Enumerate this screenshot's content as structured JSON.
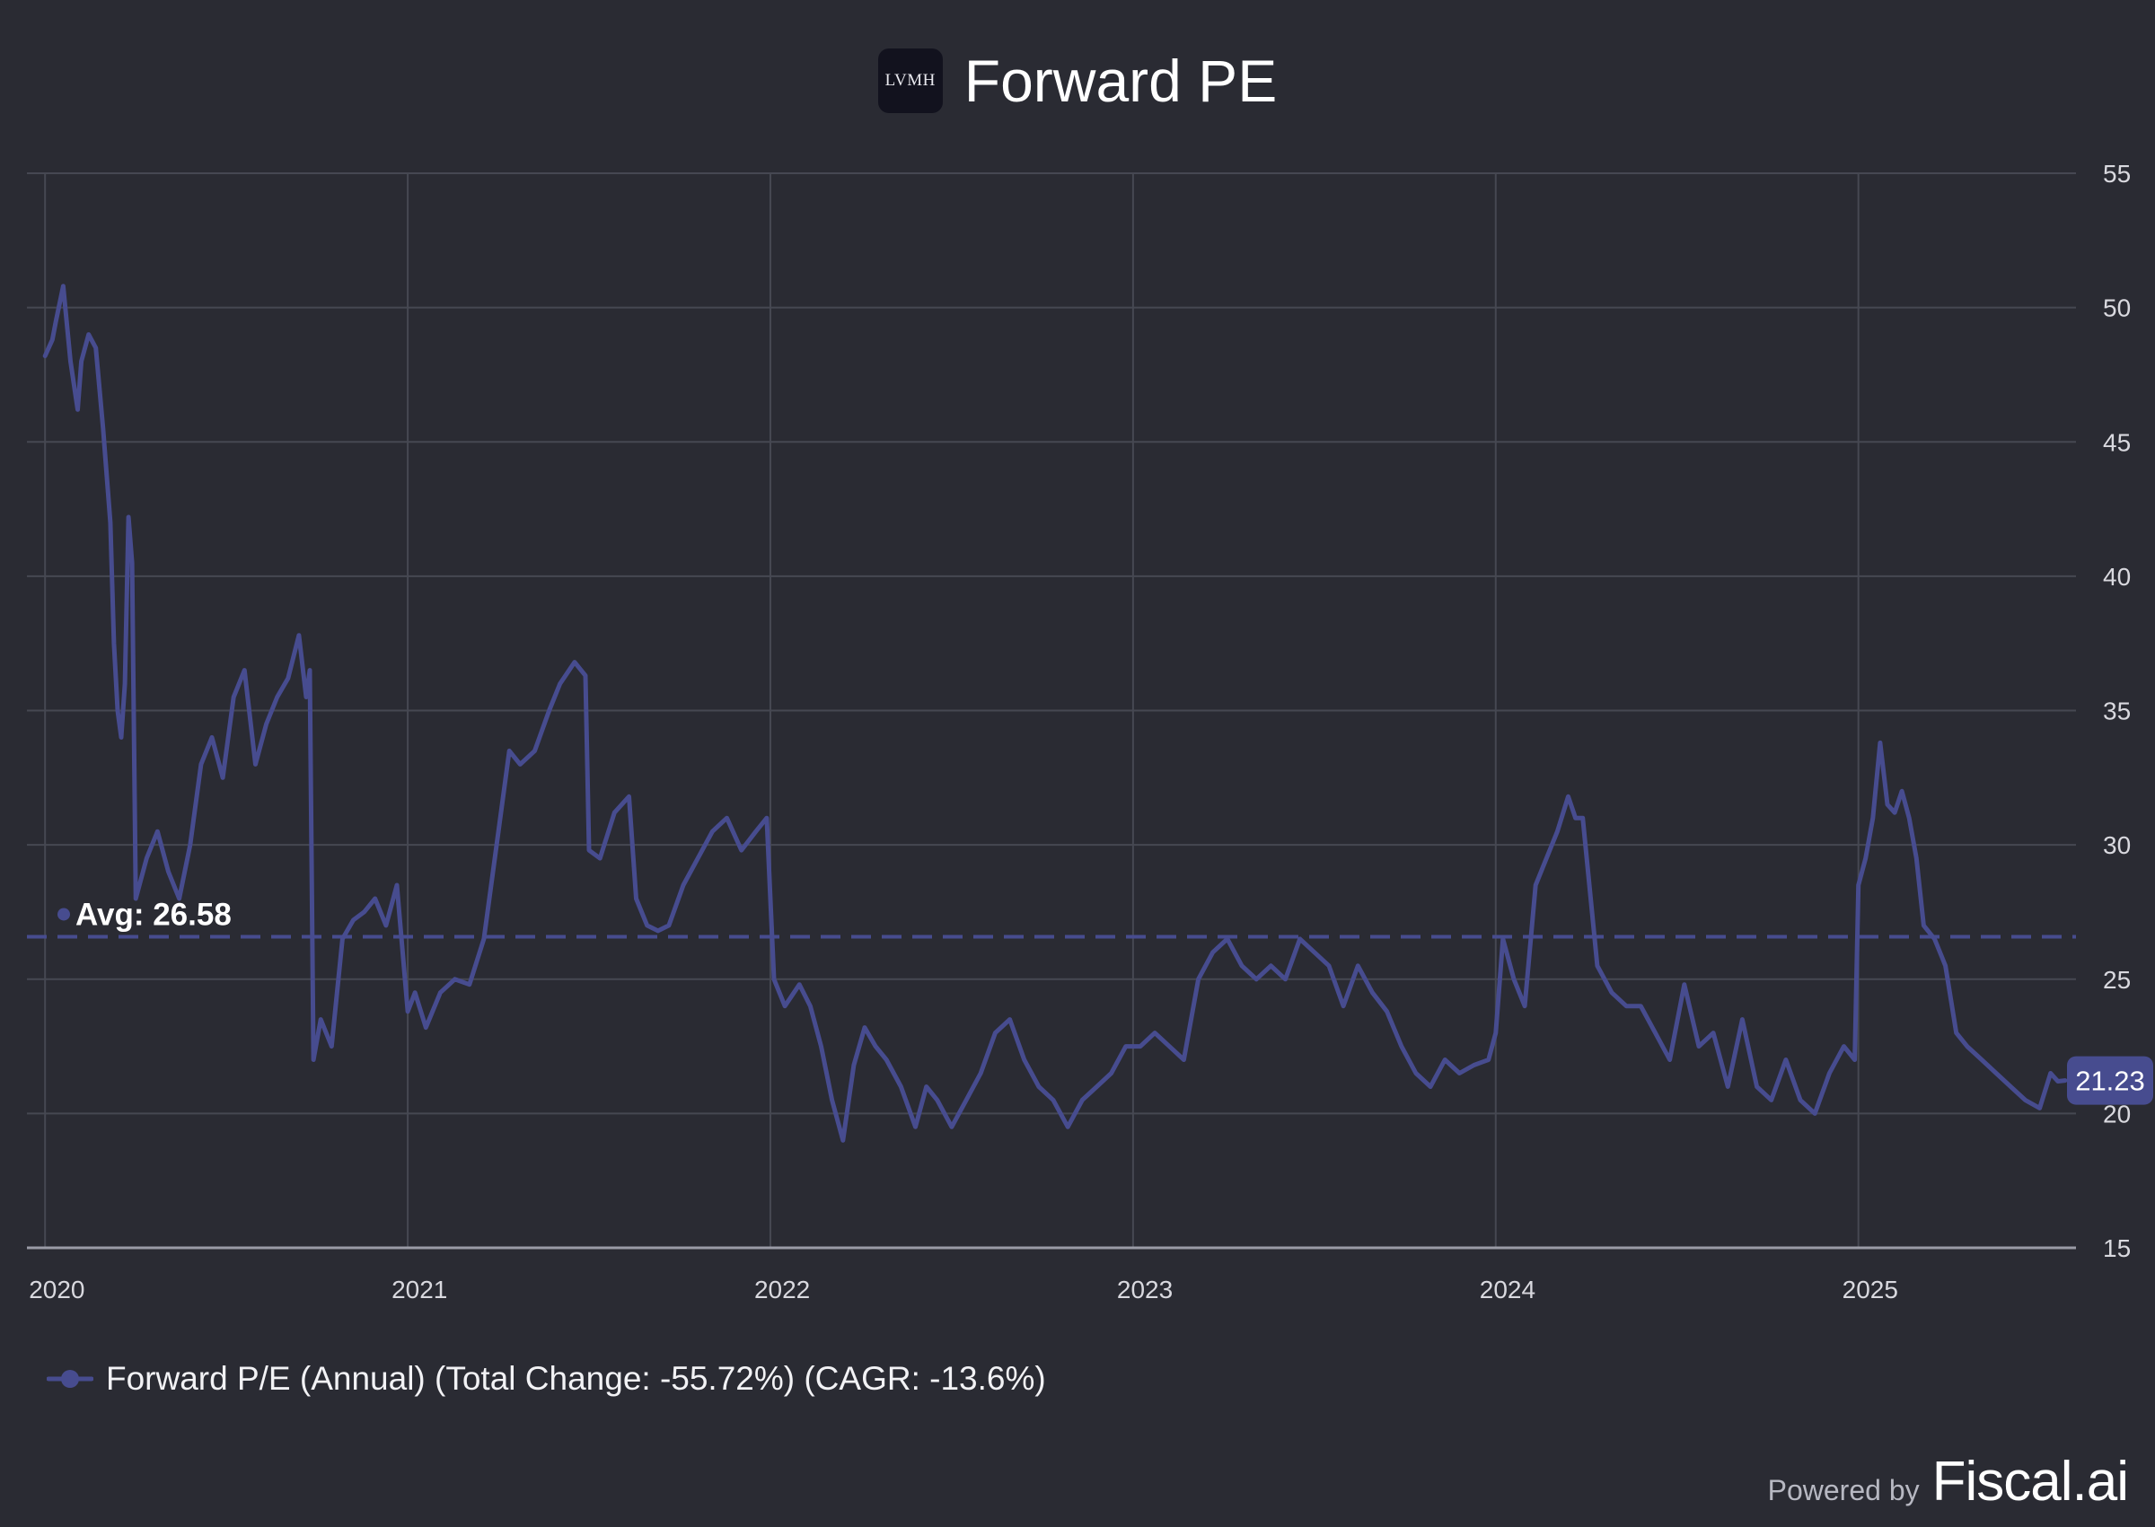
{
  "header": {
    "logo_text": "LVMH",
    "title": "Forward PE"
  },
  "legend": {
    "label": "Forward P/E (Annual) (Total Change: -55.72%) (CAGR: -13.6%)"
  },
  "footer": {
    "powered_by": "Powered by",
    "brand": "Fiscal.ai"
  },
  "colors": {
    "background": "#2a2b33",
    "series": "#474c8f",
    "grid": "#464852",
    "text": "#d9d9df"
  },
  "chart_data": {
    "type": "line",
    "title": "Forward PE",
    "xlabel": "",
    "ylabel": "",
    "x_ticks": [
      "2020",
      "2021",
      "2022",
      "2023",
      "2024",
      "2025"
    ],
    "y_ticks": [
      "15",
      "20",
      "25",
      "30",
      "35",
      "40",
      "45",
      "50",
      "55"
    ],
    "xlim": [
      2019.95,
      2025.6
    ],
    "ylim": [
      15,
      55
    ],
    "average": {
      "label": "Avg: 26.58",
      "value": 26.58
    },
    "last_value_label": "21.23",
    "series": [
      {
        "name": "Forward P/E (Annual) (Total Change: -55.72%) (CAGR: -13.6%)",
        "x": [
          2020.0,
          2020.02,
          2020.03,
          2020.05,
          2020.07,
          2020.09,
          2020.1,
          2020.12,
          2020.14,
          2020.16,
          2020.18,
          2020.19,
          2020.2,
          2020.21,
          2020.22,
          2020.23,
          2020.24,
          2020.25,
          2020.28,
          2020.31,
          2020.34,
          2020.37,
          2020.4,
          2020.43,
          2020.46,
          2020.49,
          2020.52,
          2020.55,
          2020.58,
          2020.61,
          2020.64,
          2020.67,
          2020.7,
          2020.72,
          2020.73,
          2020.74,
          2020.76,
          2020.79,
          2020.82,
          2020.85,
          2020.88,
          2020.91,
          2020.94,
          2020.97,
          2021.0,
          2021.02,
          2021.05,
          2021.09,
          2021.13,
          2021.17,
          2021.21,
          2021.25,
          2021.28,
          2021.31,
          2021.35,
          2021.39,
          2021.42,
          2021.46,
          2021.49,
          2021.5,
          2021.53,
          2021.57,
          2021.61,
          2021.63,
          2021.66,
          2021.69,
          2021.72,
          2021.76,
          2021.8,
          2021.84,
          2021.88,
          2021.92,
          2021.96,
          2021.99,
          2022.01,
          2022.04,
          2022.08,
          2022.11,
          2022.14,
          2022.17,
          2022.2,
          2022.23,
          2022.26,
          2022.29,
          2022.32,
          2022.36,
          2022.4,
          2022.43,
          2022.46,
          2022.5,
          2022.54,
          2022.58,
          2022.62,
          2022.66,
          2022.7,
          2022.74,
          2022.78,
          2022.82,
          2022.86,
          2022.9,
          2022.94,
          2022.98,
          2023.02,
          2023.06,
          2023.1,
          2023.14,
          2023.18,
          2023.22,
          2023.26,
          2023.3,
          2023.34,
          2023.38,
          2023.42,
          2023.46,
          2023.5,
          2023.54,
          2023.58,
          2023.62,
          2023.66,
          2023.7,
          2023.74,
          2023.78,
          2023.82,
          2023.86,
          2023.9,
          2023.94,
          2023.98,
          2024.0,
          2024.02,
          2024.05,
          2024.08,
          2024.11,
          2024.14,
          2024.17,
          2024.2,
          2024.22,
          2024.24,
          2024.28,
          2024.32,
          2024.36,
          2024.4,
          2024.44,
          2024.48,
          2024.52,
          2024.56,
          2024.6,
          2024.64,
          2024.68,
          2024.72,
          2024.76,
          2024.8,
          2024.84,
          2024.88,
          2024.92,
          2024.96,
          2024.99,
          2025.0,
          2025.02,
          2025.04,
          2025.06,
          2025.08,
          2025.1,
          2025.12,
          2025.14,
          2025.16,
          2025.18,
          2025.21,
          2025.24,
          2025.27,
          2025.3,
          2025.34,
          2025.38,
          2025.42,
          2025.46,
          2025.5,
          2025.53,
          2025.55,
          2025.57
        ],
        "values": [
          48.2,
          48.8,
          49.5,
          50.8,
          48.0,
          46.2,
          48.0,
          49.0,
          48.5,
          45.5,
          42.0,
          37.5,
          35.0,
          34.0,
          36.0,
          42.2,
          40.5,
          28.0,
          29.5,
          30.5,
          29.0,
          28.0,
          30.0,
          33.0,
          34.0,
          32.5,
          35.5,
          36.5,
          33.0,
          34.5,
          35.5,
          36.2,
          37.8,
          35.5,
          36.5,
          22.0,
          23.5,
          22.5,
          26.5,
          27.2,
          27.5,
          28.0,
          27.0,
          28.5,
          23.8,
          24.5,
          23.2,
          24.5,
          25.0,
          24.8,
          26.5,
          30.5,
          33.5,
          33.0,
          33.5,
          35.0,
          36.0,
          36.8,
          36.3,
          29.8,
          29.5,
          31.2,
          31.8,
          28.0,
          27.0,
          26.8,
          27.0,
          28.5,
          29.5,
          30.5,
          31.0,
          29.8,
          30.5,
          31.0,
          25.0,
          24.0,
          24.8,
          24.0,
          22.5,
          20.5,
          19.0,
          21.8,
          23.2,
          22.5,
          22.0,
          21.0,
          19.5,
          21.0,
          20.5,
          19.5,
          20.5,
          21.5,
          23.0,
          23.5,
          22.0,
          21.0,
          20.5,
          19.5,
          20.5,
          21.0,
          21.5,
          22.5,
          22.5,
          23.0,
          22.5,
          22.0,
          25.0,
          26.0,
          26.5,
          25.5,
          25.0,
          25.5,
          25.0,
          26.5,
          26.0,
          25.5,
          24.0,
          25.5,
          24.5,
          23.8,
          22.5,
          21.5,
          21.0,
          22.0,
          21.5,
          21.8,
          22.0,
          23.0,
          26.5,
          25.0,
          24.0,
          28.5,
          29.5,
          30.5,
          31.8,
          31.0,
          31.0,
          25.5,
          24.5,
          24.0,
          24.0,
          23.0,
          22.0,
          24.8,
          22.5,
          23.0,
          21.0,
          23.5,
          21.0,
          20.5,
          22.0,
          20.5,
          20.0,
          21.5,
          22.5,
          22.0,
          28.5,
          29.5,
          31.0,
          33.8,
          31.5,
          31.2,
          32.0,
          31.0,
          29.5,
          27.0,
          26.5,
          25.5,
          23.0,
          22.5,
          22.0,
          21.5,
          21.0,
          20.5,
          20.2,
          21.5,
          21.2,
          21.23
        ]
      }
    ]
  }
}
